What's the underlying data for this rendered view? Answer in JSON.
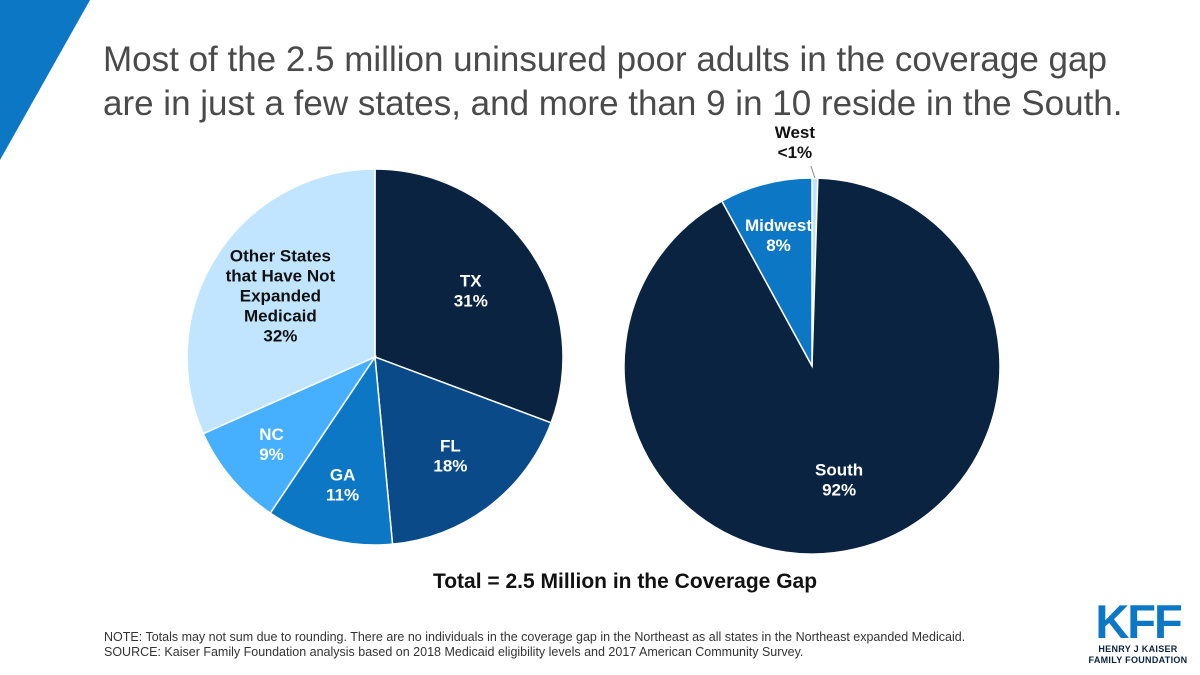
{
  "title": "Most of the 2.5 million uninsured poor adults in the coverage gap are in just a few states, and more than 9 in 10 reside in the South.",
  "total_label": "Total = 2.5 Million in the Coverage Gap",
  "note": "NOTE: Totals may not sum due to rounding. There are no individuals in the coverage gap in the Northeast as all states in the Northeast expanded Medicaid.",
  "source": "SOURCE:  Kaiser Family Foundation analysis based on 2018 Medicaid eligibility levels and 2017 American Community Survey.",
  "logo": {
    "mark": "KFF",
    "line1": "HENRY J KAISER",
    "line2": "FAMILY FOUNDATION"
  },
  "colors": {
    "accent": "#0c77c5",
    "title": "#4a4a4a"
  },
  "chart_data": [
    {
      "type": "pie",
      "title": "",
      "slices": [
        {
          "name": "TX",
          "label_lines": [
            "TX",
            "31%"
          ],
          "value": 31,
          "color": "#0a2340",
          "text_color": "#ffffff"
        },
        {
          "name": "FL",
          "label_lines": [
            "FL",
            "18%"
          ],
          "value": 18,
          "color": "#0b4a88",
          "text_color": "#ffffff"
        },
        {
          "name": "GA",
          "label_lines": [
            "GA",
            "11%"
          ],
          "value": 11,
          "color": "#0c77c5",
          "text_color": "#ffffff"
        },
        {
          "name": "NC",
          "label_lines": [
            "NC",
            "9%"
          ],
          "value": 9,
          "color": "#46b0ff",
          "text_color": "#ffffff"
        },
        {
          "name": "Other States that Have Not Expanded Medicaid",
          "label_lines": [
            "Other States",
            "that Have Not",
            "Expanded",
            "Medicaid",
            "32%"
          ],
          "value": 32,
          "color": "#c2e5ff",
          "text_color": "#111111"
        }
      ]
    },
    {
      "type": "pie",
      "title": "",
      "slices": [
        {
          "name": "West",
          "label_lines": [
            "West",
            "<1%"
          ],
          "value": 0.5,
          "color": "#c2e5ff",
          "text_color": "#111111",
          "outside": true
        },
        {
          "name": "South",
          "label_lines": [
            "South",
            "92%"
          ],
          "value": 92,
          "color": "#0a2340",
          "text_color": "#ffffff"
        },
        {
          "name": "Midwest",
          "label_lines": [
            "Midwest",
            "8%"
          ],
          "value": 8,
          "color": "#0c77c5",
          "text_color": "#ffffff"
        }
      ]
    }
  ]
}
